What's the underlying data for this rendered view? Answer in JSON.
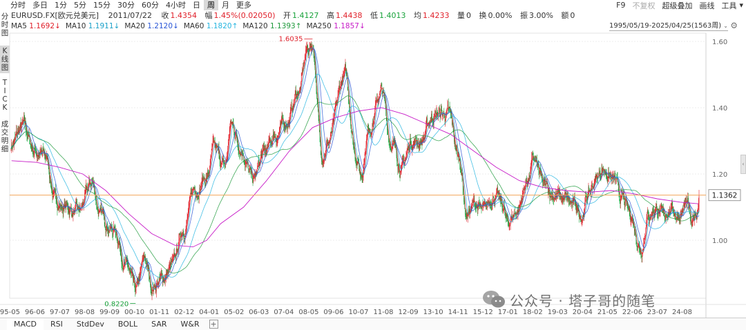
{
  "periods": [
    {
      "label": "分时",
      "active": false
    },
    {
      "label": "多日",
      "active": false
    },
    {
      "label": "1分",
      "active": false
    },
    {
      "label": "5分",
      "active": false
    },
    {
      "label": "15分",
      "active": false
    },
    {
      "label": "30分",
      "active": false
    },
    {
      "label": "60分",
      "active": false
    },
    {
      "label": "4小时",
      "active": false
    },
    {
      "label": "日",
      "active": false
    },
    {
      "label": "周",
      "active": true
    },
    {
      "label": "月",
      "active": false
    },
    {
      "label": "更多",
      "active": false
    }
  ],
  "toolbar": {
    "f9": "F9",
    "no_adjust": "不复权",
    "overlay": "超级叠加",
    "draw": "画线",
    "tools": "工具",
    "tools_chevron": "▾"
  },
  "quote": {
    "symbol": "EURUSD.FX[欧元兑美元]",
    "date": "2011/07/22",
    "close_label": "收",
    "close": "1.4354",
    "change_label": "幅",
    "change": "1.45%(0.02050)",
    "open_label": "开",
    "open": "1.4127",
    "high_label": "高",
    "high": "1.4438",
    "low_label": "低",
    "low": "1.4013",
    "avg_label": "均",
    "avg": "1.4233",
    "vol_label": "量",
    "vol": "0",
    "turnover_label": "换",
    "turnover": "0.00%",
    "amplitude_label": "振",
    "amplitude": "3.00%",
    "amount_label": "额",
    "amount": "0"
  },
  "ma": [
    {
      "label": "MA5",
      "value": "1.1692",
      "arrow": "↓",
      "color": "#e0202a"
    },
    {
      "label": "MA10",
      "value": "1.1911",
      "arrow": "↓",
      "color": "#1aa0c8"
    },
    {
      "label": "MA20",
      "value": "1.2120",
      "arrow": "↓",
      "color": "#2a56d6"
    },
    {
      "label": "MA60",
      "value": "1.1820",
      "arrow": "↑",
      "color": "#26b5e0"
    },
    {
      "label": "MA120",
      "value": "1.1393",
      "arrow": "↑",
      "color": "#1f9a3c"
    },
    {
      "label": "MA250",
      "value": "1.1857",
      "arrow": "↓",
      "color": "#c71bc7"
    }
  ],
  "range": "1995/05/19-2025/04/25(1563周)",
  "range_chevron": "⌄",
  "left_tabs": [
    {
      "label": "分\n时\n图",
      "active": false
    },
    {
      "label": "K\n线\n图",
      "active": true
    },
    {
      "label": "T\nI\nC\nK",
      "active": false
    },
    {
      "label": "成\n交\n明\n细",
      "active": false
    }
  ],
  "chart_data": {
    "type": "candlestick",
    "x_labels": [
      "95-05",
      "96-06",
      "97-07",
      "98-08",
      "99-09",
      "00-10",
      "01-11",
      "02-12",
      "04-01",
      "05-02",
      "06-03",
      "07-04",
      "08-05",
      "09-06",
      "10-07",
      "11-08",
      "12-09",
      "13-10",
      "14-11",
      "15-12",
      "17-01",
      "18-02",
      "19-03",
      "20-04",
      "21-05",
      "22-06",
      "23-07",
      "24-08"
    ],
    "y_ticks": [
      "1.60",
      "1.40",
      "1.20",
      "1.00"
    ],
    "ylim": [
      0.79,
      1.66
    ],
    "current_price": "1.1362",
    "high_marker": "1.6035",
    "low_marker": "0.8220",
    "anchors": [
      [
        1995.38,
        1.29
      ],
      [
        1995.9,
        1.34
      ],
      [
        1996.4,
        1.27
      ],
      [
        1996.9,
        1.25
      ],
      [
        1997.3,
        1.12
      ],
      [
        1997.7,
        1.1
      ],
      [
        1998.3,
        1.08
      ],
      [
        1998.9,
        1.17
      ],
      [
        1999.3,
        1.07
      ],
      [
        1999.9,
        1.03
      ],
      [
        2000.4,
        0.92
      ],
      [
        2000.8,
        0.84
      ],
      [
        2001.2,
        0.94
      ],
      [
        2001.5,
        0.86
      ],
      [
        2001.9,
        0.88
      ],
      [
        2002.4,
        0.92
      ],
      [
        2002.9,
        1.04
      ],
      [
        2003.4,
        1.16
      ],
      [
        2003.9,
        1.19
      ],
      [
        2004.2,
        1.27
      ],
      [
        2004.7,
        1.22
      ],
      [
        2004.95,
        1.35
      ],
      [
        2005.4,
        1.28
      ],
      [
        2005.9,
        1.18
      ],
      [
        2006.4,
        1.26
      ],
      [
        2006.9,
        1.32
      ],
      [
        2007.4,
        1.36
      ],
      [
        2007.9,
        1.45
      ],
      [
        2008.3,
        1.58
      ],
      [
        2008.5,
        1.59
      ],
      [
        2008.9,
        1.26
      ],
      [
        2009.2,
        1.3
      ],
      [
        2009.9,
        1.5
      ],
      [
        2010.4,
        1.26
      ],
      [
        2010.6,
        1.2
      ],
      [
        2010.95,
        1.34
      ],
      [
        2011.5,
        1.45
      ],
      [
        2011.9,
        1.3
      ],
      [
        2012.4,
        1.22
      ],
      [
        2012.8,
        1.3
      ],
      [
        2013.2,
        1.3
      ],
      [
        2013.8,
        1.38
      ],
      [
        2014.4,
        1.38
      ],
      [
        2014.9,
        1.24
      ],
      [
        2015.2,
        1.08
      ],
      [
        2015.6,
        1.11
      ],
      [
        2015.9,
        1.08
      ],
      [
        2016.4,
        1.14
      ],
      [
        2016.8,
        1.1
      ],
      [
        2016.95,
        1.05
      ],
      [
        2017.4,
        1.09
      ],
      [
        2017.9,
        1.19
      ],
      [
        2018.1,
        1.24
      ],
      [
        2018.6,
        1.16
      ],
      [
        2019.0,
        1.14
      ],
      [
        2019.5,
        1.12
      ],
      [
        2019.9,
        1.1
      ],
      [
        2020.2,
        1.08
      ],
      [
        2020.5,
        1.14
      ],
      [
        2020.9,
        1.19
      ],
      [
        2021.1,
        1.22
      ],
      [
        2021.6,
        1.18
      ],
      [
        2021.9,
        1.13
      ],
      [
        2022.3,
        1.08
      ],
      [
        2022.8,
        0.98
      ],
      [
        2023.1,
        1.08
      ],
      [
        2023.5,
        1.1
      ],
      [
        2023.8,
        1.06
      ],
      [
        2024.0,
        1.1
      ],
      [
        2024.4,
        1.08
      ],
      [
        2024.8,
        1.11
      ],
      [
        2025.0,
        1.03
      ],
      [
        2025.2,
        1.08
      ],
      [
        2025.32,
        1.14
      ]
    ],
    "ma250": [
      [
        1995.4,
        1.24
      ],
      [
        1996.5,
        1.235
      ],
      [
        1997.5,
        1.22
      ],
      [
        1998.5,
        1.2
      ],
      [
        1999.5,
        1.15
      ],
      [
        2000.5,
        1.08
      ],
      [
        2001.5,
        1.02
      ],
      [
        2002.5,
        0.985
      ],
      [
        2003.3,
        0.98
      ],
      [
        2003.9,
        1.0
      ],
      [
        2004.5,
        1.05
      ],
      [
        2005.5,
        1.1
      ],
      [
        2006.5,
        1.18
      ],
      [
        2007.5,
        1.27
      ],
      [
        2008.5,
        1.34
      ],
      [
        2009.5,
        1.37
      ],
      [
        2010.5,
        1.39
      ],
      [
        2011.5,
        1.4
      ],
      [
        2012.5,
        1.38
      ],
      [
        2013.5,
        1.35
      ],
      [
        2014.5,
        1.32
      ],
      [
        2015.5,
        1.27
      ],
      [
        2016.5,
        1.22
      ],
      [
        2017.5,
        1.18
      ],
      [
        2018.5,
        1.16
      ],
      [
        2019.5,
        1.15
      ],
      [
        2020.5,
        1.145
      ],
      [
        2021.5,
        1.15
      ],
      [
        2022.5,
        1.14
      ],
      [
        2023.5,
        1.125
      ],
      [
        2024.5,
        1.115
      ],
      [
        2025.3,
        1.11
      ]
    ]
  },
  "indicators": [
    {
      "label": "MACD",
      "active": true
    },
    {
      "label": "RSI",
      "active": false
    },
    {
      "label": "StdDev",
      "active": false
    },
    {
      "label": "BOLL",
      "active": false
    },
    {
      "label": "SAR",
      "active": false
    },
    {
      "label": "W&R",
      "active": false
    }
  ],
  "add_indicator": "+",
  "watermark": "公众号 · 塔子哥的随笔",
  "side_handle": "‹"
}
